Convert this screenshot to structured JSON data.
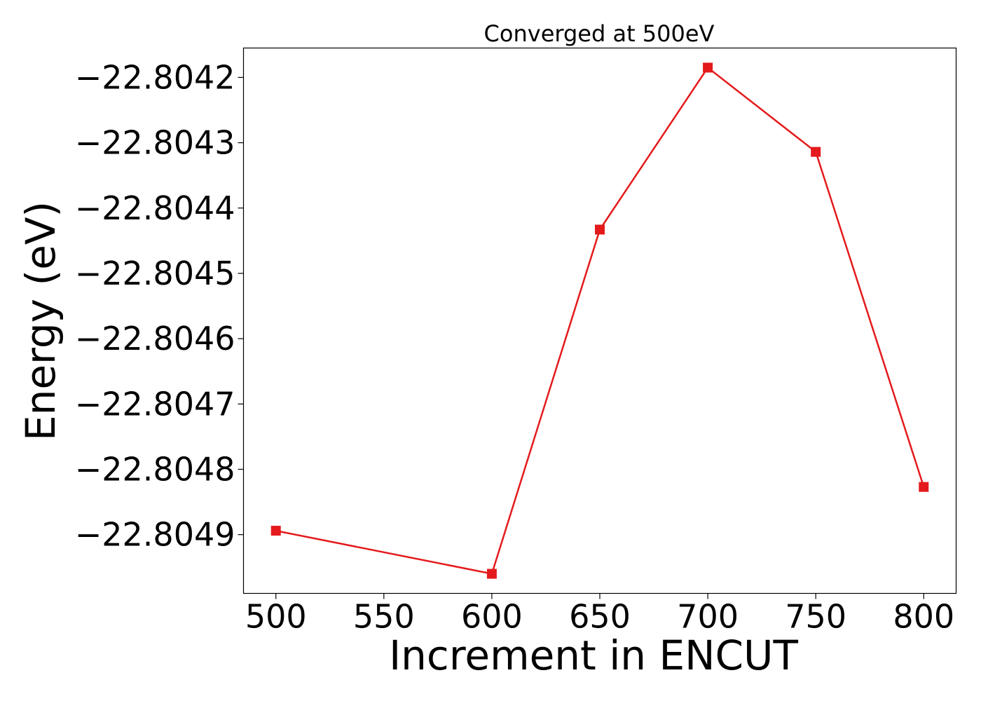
{
  "chart_data": {
    "type": "line",
    "title": "Converged at 500eV",
    "xlabel": "Increment in ENCUT",
    "ylabel": "Energy (eV)",
    "x_ticks": [
      500,
      550,
      600,
      650,
      700,
      750,
      800
    ],
    "y_ticks": [
      -22.8049,
      -22.8048,
      -22.8047,
      -22.8046,
      -22.8045,
      -22.8044,
      -22.8043,
      -22.8042
    ],
    "y_tick_labels": [
      "−22.8049",
      "−22.8048",
      "−22.8047",
      "−22.8046",
      "−22.8045",
      "−22.8044",
      "−22.8043",
      "−22.8042"
    ],
    "xlim": [
      485,
      815
    ],
    "ylim": [
      -22.80499,
      -22.804155
    ],
    "grid": false,
    "series": [
      {
        "color": "#e41a1c",
        "marker": "square",
        "x": [
          500,
          600,
          650,
          700,
          750,
          800
        ],
        "y": [
          -22.804894,
          -22.80496,
          -22.804433,
          -22.804185,
          -22.804314,
          -22.804827
        ]
      }
    ]
  }
}
